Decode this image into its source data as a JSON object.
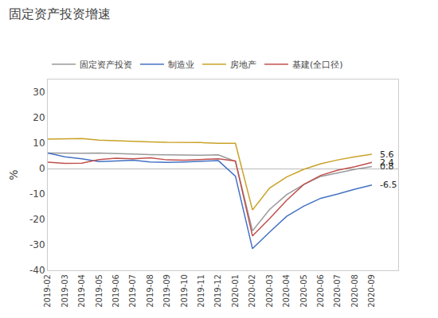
{
  "chart_data": {
    "type": "line",
    "title": "固定资产投资增速",
    "y_label": "%",
    "categories": [
      "2019-02",
      "2019-03",
      "2019-04",
      "2019-05",
      "2019-06",
      "2019-07",
      "2019-08",
      "2019-09",
      "2019-10",
      "2019-11",
      "2019-12",
      "2020-01",
      "2020-02",
      "2020-03",
      "2020-04",
      "2020-05",
      "2020-06",
      "2020-07",
      "2020-08",
      "2020-09"
    ],
    "series": [
      {
        "name": "固定资产投资",
        "color": "#999999",
        "values": [
          6.1,
          6.0,
          6.0,
          6.1,
          5.8,
          5.7,
          5.5,
          5.4,
          5.2,
          5.2,
          5.4,
          2.8,
          -24.5,
          -16.1,
          -10.3,
          -6.3,
          -3.1,
          -1.6,
          -0.3,
          0.8
        ]
      },
      {
        "name": "制造业",
        "color": "#4472c4",
        "values": [
          6.1,
          4.6,
          3.8,
          2.7,
          3.0,
          3.3,
          2.6,
          2.4,
          2.6,
          2.9,
          3.1,
          -3.0,
          -31.5,
          -25.0,
          -18.8,
          -14.8,
          -11.7,
          -10.0,
          -8.1,
          -6.5
        ]
      },
      {
        "name": "房地产",
        "color": "#c9a227",
        "values": [
          11.6,
          11.8,
          11.8,
          11.2,
          10.9,
          10.6,
          10.5,
          10.3,
          10.3,
          10.2,
          9.9,
          9.9,
          -16.3,
          -7.7,
          -3.3,
          -0.3,
          1.9,
          3.4,
          4.6,
          5.6
        ]
      },
      {
        "name": "基建(全口径)",
        "color": "#c0504d",
        "values": [
          2.5,
          2.0,
          2.1,
          3.5,
          4.1,
          3.8,
          4.2,
          3.4,
          3.3,
          3.5,
          3.8,
          3.0,
          -26.5,
          -19.7,
          -12.5,
          -6.3,
          -2.7,
          -0.6,
          0.7,
          2.4
        ]
      }
    ],
    "annotations": [
      {
        "x": "2020-09",
        "y": 5.6,
        "text": "5.6"
      },
      {
        "x": "2020-09",
        "y": 2.4,
        "text": "2.4"
      },
      {
        "x": "2020-09",
        "y": 0.8,
        "text": "0.8"
      },
      {
        "x": "2020-09",
        "y": -6.5,
        "text": "-6.5"
      }
    ],
    "ylim": [
      -40,
      35
    ],
    "yticks": [
      -40,
      -30,
      -20,
      -10,
      0,
      10,
      20,
      30
    ],
    "grid": false,
    "legend": "top"
  }
}
